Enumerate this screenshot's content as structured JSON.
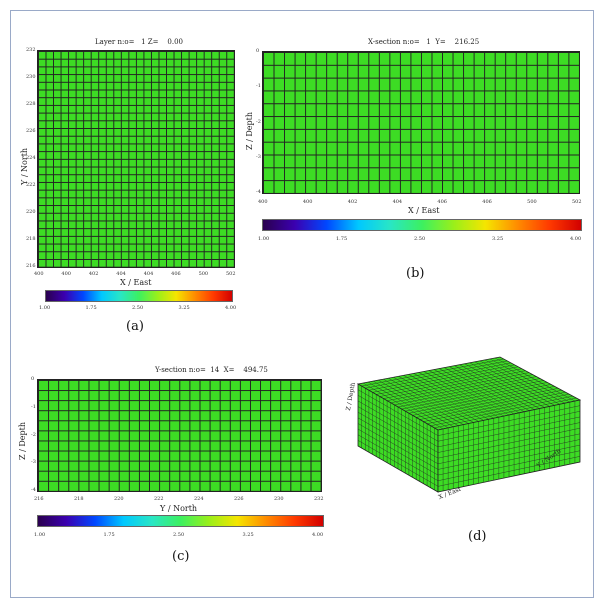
{
  "panel_a": {
    "title": "Layer n:o=   1 Z=    0.00",
    "ylabel": "Y / North",
    "xlabel": "X / East",
    "xticks": [
      "400",
      "400",
      "402",
      "404",
      "404",
      "406",
      "500",
      "502"
    ],
    "yticks": [
      "232",
      "230",
      "228",
      "226",
      "224",
      "222",
      "220",
      "218",
      "216"
    ],
    "cbar_ticks": [
      "1.00",
      "1.75",
      "2.50",
      "3.25",
      "4.00"
    ],
    "caption": "(a)"
  },
  "panel_b": {
    "title": "X-section n:o=   1  Y=    216.25",
    "ylabel": "Z / Depth",
    "xlabel": "X / East",
    "xticks": [
      "400",
      "400",
      "402",
      "404",
      "406",
      "406",
      "500",
      "502"
    ],
    "yticks": [
      "0",
      "-1",
      "-2",
      "-3",
      "-4"
    ],
    "cbar_ticks": [
      "1.00",
      "1.75",
      "2.50",
      "3.25",
      "4.00"
    ],
    "caption": "(b)"
  },
  "panel_c": {
    "title": "Y-section n:o=  14  X=    494.75",
    "ylabel": "Z / Depth",
    "xlabel": "Y / North",
    "xticks": [
      "216",
      "218",
      "220",
      "222",
      "224",
      "226",
      "230",
      "232"
    ],
    "yticks": [
      "0",
      "-1",
      "-2",
      "-3",
      "-4"
    ],
    "cbar_ticks": [
      "1.00",
      "1.75",
      "2.50",
      "3.25",
      "4.00"
    ],
    "caption": "(c)"
  },
  "panel_d": {
    "zlabel": "Z / Depth",
    "xlabel": "X / East",
    "ylabel": "Y / North",
    "caption": "(d)"
  },
  "colors": {
    "cell_fill": "#3ddc24",
    "grid_line": "#222222",
    "frame": "#9aaac8"
  }
}
